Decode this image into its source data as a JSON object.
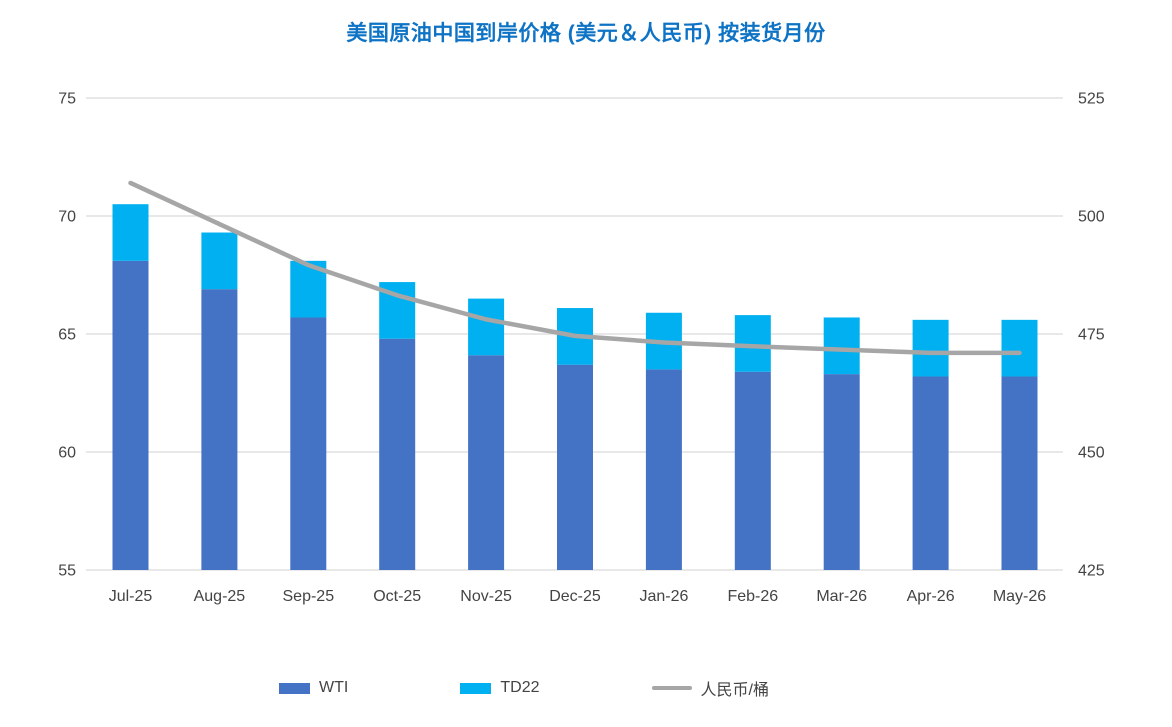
{
  "title": "美国原油中国到岸价格 (美元＆人民币) 按装货月份",
  "colors": {
    "title": "#0E73C5",
    "wti_bar": "#4472C4",
    "td22_bar": "#00B0F0",
    "rmb_line": "#A6A6A6",
    "gridline": "#D9D9D9",
    "axis_text": "#444444"
  },
  "legend": {
    "items": [
      {
        "name": "wti",
        "label": "WTI",
        "swatch": "bar-swatch"
      },
      {
        "name": "td22",
        "label": "TD22",
        "swatch": "bar-swatch"
      },
      {
        "name": "rmb-per-barrel",
        "label": "人民币/桶",
        "swatch": "line-swatch"
      }
    ]
  },
  "chart_data": {
    "type": "bar",
    "subtype": "stacked-bars-with-line",
    "title": "美国原油中国到岸价格 (美元＆人民币) 按装货月份",
    "categories": [
      "Jul-25",
      "Aug-25",
      "Sep-25",
      "Oct-25",
      "Nov-25",
      "Dec-25",
      "Jan-26",
      "Feb-26",
      "Mar-26",
      "Apr-26",
      "May-26"
    ],
    "series": [
      {
        "name": "WTI",
        "type": "bar-stacked",
        "axis": "left",
        "values": [
          68.1,
          66.9,
          65.7,
          64.8,
          64.1,
          63.7,
          63.5,
          63.4,
          63.3,
          63.2,
          63.2
        ]
      },
      {
        "name": "TD22",
        "type": "bar-stacked",
        "axis": "left",
        "values": [
          2.4,
          2.4,
          2.4,
          2.4,
          2.4,
          2.4,
          2.4,
          2.4,
          2.4,
          2.4,
          2.4
        ]
      },
      {
        "name": "人民币/桶",
        "type": "line",
        "axis": "right",
        "values": [
          507.0,
          498.3,
          489.6,
          483.2,
          478.1,
          474.6,
          473.2,
          472.4,
          471.7,
          471.0,
          471.0
        ]
      }
    ],
    "stack_totals": [
      70.5,
      69.3,
      68.1,
      67.2,
      66.5,
      66.1,
      65.9,
      65.8,
      65.7,
      65.6,
      65.6
    ],
    "axes": {
      "left": {
        "min": 55,
        "max": 75,
        "ticks": [
          "75",
          "70",
          "65",
          "60",
          "55"
        ]
      },
      "right": {
        "min": 425,
        "max": 525,
        "ticks": [
          "525",
          "500",
          "475",
          "450",
          "425"
        ]
      }
    },
    "grid": true,
    "legend_position": "bottom",
    "xlabel": "",
    "ylabel_left": "",
    "ylabel_right": ""
  }
}
